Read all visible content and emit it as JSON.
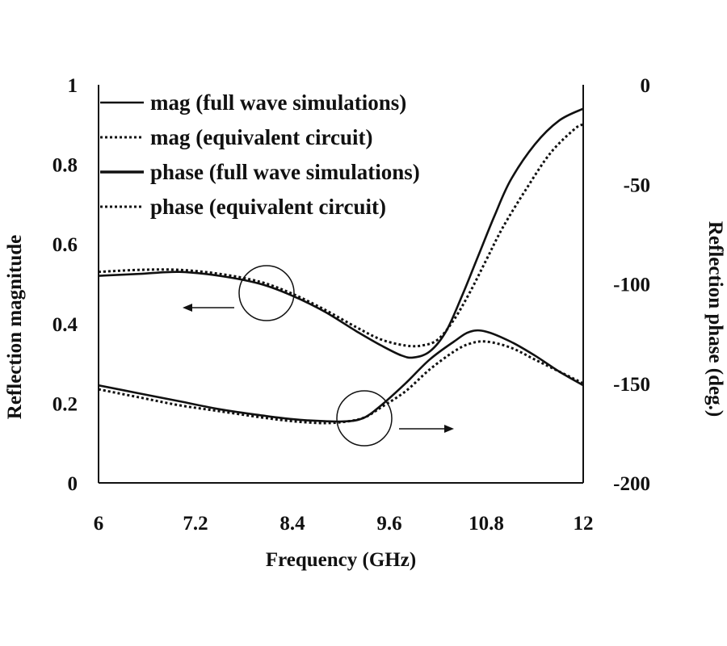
{
  "chart_data": {
    "type": "line",
    "xlabel": "Frequency (GHz)",
    "ylabel": "Reflection magnitude",
    "y2label": "Reflection phase (deg.)",
    "xlim": [
      6,
      12
    ],
    "ylim": [
      0,
      1
    ],
    "y2lim": [
      -200,
      0
    ],
    "xticks": [
      "6",
      "7.2",
      "8.4",
      "9.6",
      "10.8",
      "12"
    ],
    "yticks": [
      "0",
      "0.2",
      "0.4",
      "0.6",
      "0.8",
      "1"
    ],
    "y2ticks": [
      "-200",
      "-150",
      "-100",
      "-50",
      "0"
    ],
    "grid": false,
    "legend_position": "top-left",
    "series": [
      {
        "name": "mag (full wave simulations)",
        "axis": "left",
        "style": "solid",
        "x": [
          6.0,
          6.5,
          7.0,
          7.5,
          8.0,
          8.4,
          8.8,
          9.2,
          9.5,
          9.75,
          9.9,
          10.1,
          10.3,
          10.5,
          10.7,
          10.9,
          11.1,
          11.4,
          11.7,
          12.0
        ],
        "y": [
          0.52,
          0.525,
          0.53,
          0.52,
          0.5,
          0.47,
          0.43,
          0.38,
          0.345,
          0.32,
          0.315,
          0.33,
          0.38,
          0.47,
          0.57,
          0.67,
          0.76,
          0.85,
          0.91,
          0.94
        ]
      },
      {
        "name": "mag (equivalent circuit)",
        "axis": "left",
        "style": "dotted",
        "x": [
          6.0,
          6.5,
          7.0,
          7.5,
          8.0,
          8.4,
          8.8,
          9.2,
          9.5,
          9.8,
          10.0,
          10.2,
          10.4,
          10.6,
          10.8,
          11.0,
          11.3,
          11.6,
          11.9,
          12.0
        ],
        "y": [
          0.53,
          0.535,
          0.535,
          0.525,
          0.505,
          0.475,
          0.435,
          0.39,
          0.36,
          0.345,
          0.345,
          0.36,
          0.41,
          0.48,
          0.56,
          0.64,
          0.74,
          0.83,
          0.89,
          0.9
        ]
      },
      {
        "name": "phase (full wave simulations)",
        "axis": "right",
        "style": "solid",
        "x": [
          6.0,
          6.5,
          7.0,
          7.5,
          8.0,
          8.4,
          8.8,
          9.1,
          9.3,
          9.5,
          9.8,
          10.1,
          10.4,
          10.6,
          10.8,
          11.1,
          11.4,
          11.7,
          12.0
        ],
        "y": [
          -151,
          -155,
          -159,
          -163,
          -166,
          -168,
          -169,
          -169,
          -167,
          -161,
          -150,
          -138,
          -129,
          -124,
          -124,
          -129,
          -136,
          -144,
          -151
        ]
      },
      {
        "name": "phase (equivalent circuit)",
        "axis": "right",
        "style": "dotted",
        "x": [
          6.0,
          6.5,
          7.0,
          7.5,
          8.0,
          8.4,
          8.8,
          9.1,
          9.3,
          9.5,
          9.8,
          10.1,
          10.4,
          10.6,
          10.8,
          11.1,
          11.4,
          11.7,
          12.0
        ],
        "y": [
          -153,
          -157,
          -161,
          -164,
          -167,
          -169,
          -170,
          -169,
          -167,
          -162,
          -154,
          -143,
          -134,
          -130,
          -129,
          -132,
          -138,
          -144,
          -150
        ]
      }
    ]
  }
}
